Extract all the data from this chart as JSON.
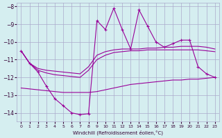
{
  "xlabel": "Windchill (Refroidissement éolien,°C)",
  "x": [
    0,
    1,
    2,
    3,
    4,
    5,
    6,
    7,
    8,
    9,
    10,
    11,
    12,
    13,
    14,
    15,
    16,
    17,
    18,
    19,
    20,
    21,
    22,
    23
  ],
  "line_actual": [
    -10.5,
    -11.2,
    -11.7,
    -12.5,
    -13.2,
    -13.6,
    -14.0,
    -14.1,
    -14.05,
    -8.8,
    -9.3,
    -8.1,
    -9.3,
    -10.4,
    -8.2,
    -9.1,
    -10.0,
    -10.3,
    -10.1,
    -9.9,
    -9.9,
    -11.4,
    -11.8,
    -12.0
  ],
  "line_upper": [
    -10.5,
    -11.2,
    -11.5,
    -11.6,
    -11.65,
    -11.7,
    -11.75,
    -11.8,
    -11.4,
    -10.75,
    -10.55,
    -10.45,
    -10.4,
    -10.4,
    -10.4,
    -10.35,
    -10.35,
    -10.3,
    -10.3,
    -10.25,
    -10.25,
    -10.25,
    -10.3,
    -10.4
  ],
  "line_middle": [
    -10.5,
    -11.2,
    -11.6,
    -11.75,
    -11.85,
    -11.9,
    -11.95,
    -12.0,
    -11.6,
    -11.0,
    -10.75,
    -10.6,
    -10.55,
    -10.5,
    -10.5,
    -10.45,
    -10.45,
    -10.45,
    -10.45,
    -10.45,
    -10.45,
    -10.45,
    -10.5,
    -10.55
  ],
  "line_lower": [
    -12.6,
    -12.65,
    -12.7,
    -12.75,
    -12.8,
    -12.85,
    -12.85,
    -12.85,
    -12.85,
    -12.8,
    -12.7,
    -12.6,
    -12.5,
    -12.4,
    -12.35,
    -12.3,
    -12.25,
    -12.2,
    -12.15,
    -12.15,
    -12.1,
    -12.1,
    -12.05,
    -12.0
  ],
  "ylim": [
    -14.5,
    -7.8
  ],
  "xlim": [
    -0.5,
    23.5
  ],
  "yticks": [
    -8,
    -9,
    -10,
    -11,
    -12,
    -13,
    -14
  ],
  "xticks": [
    0,
    1,
    2,
    3,
    4,
    5,
    6,
    7,
    8,
    9,
    10,
    11,
    12,
    13,
    14,
    15,
    16,
    17,
    18,
    19,
    20,
    21,
    22,
    23
  ],
  "line_color": "#990099",
  "bg_color": "#d5eef0",
  "grid_color": "#aaaacc",
  "figsize": [
    3.2,
    2.0
  ],
  "dpi": 100
}
